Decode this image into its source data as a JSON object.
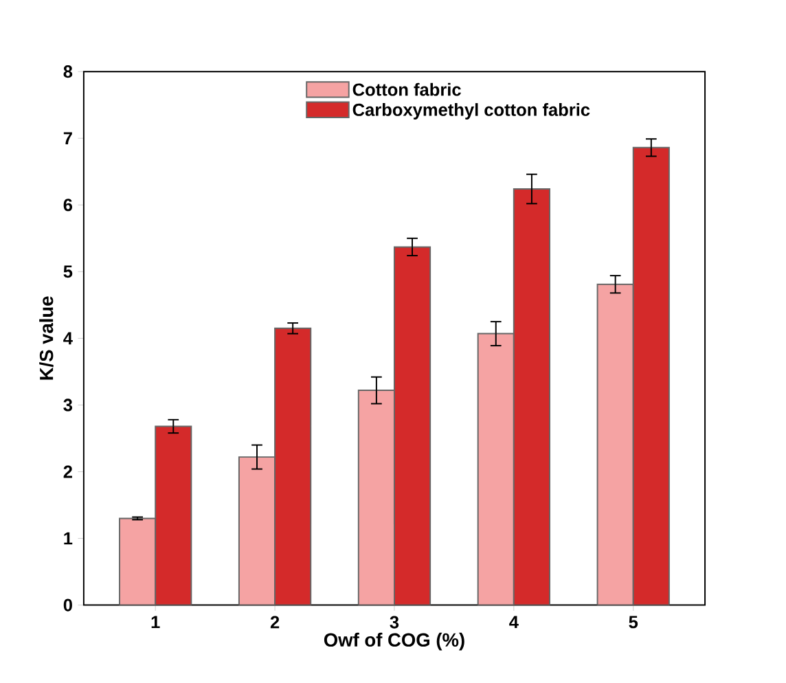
{
  "chart_data": {
    "type": "bar",
    "xlabel": "Owf of COG (%)",
    "ylabel": "K/S value",
    "categories": [
      "1",
      "2",
      "3",
      "4",
      "5"
    ],
    "series": [
      {
        "name": "Cotton fabric",
        "color": "#f5a3a3",
        "values": [
          1.3,
          2.22,
          3.22,
          4.07,
          4.81
        ],
        "errors": [
          0.02,
          0.18,
          0.2,
          0.18,
          0.13
        ]
      },
      {
        "name": "Carboxymethyl cotton fabric",
        "color": "#d42a2a",
        "values": [
          2.68,
          4.15,
          5.37,
          6.24,
          6.86
        ],
        "errors": [
          0.1,
          0.08,
          0.13,
          0.22,
          0.13
        ]
      }
    ],
    "ylim": [
      0,
      8
    ],
    "yticks": [
      0,
      1,
      2,
      3,
      4,
      5,
      6,
      7,
      8
    ],
    "legend": "top",
    "grid": false
  }
}
